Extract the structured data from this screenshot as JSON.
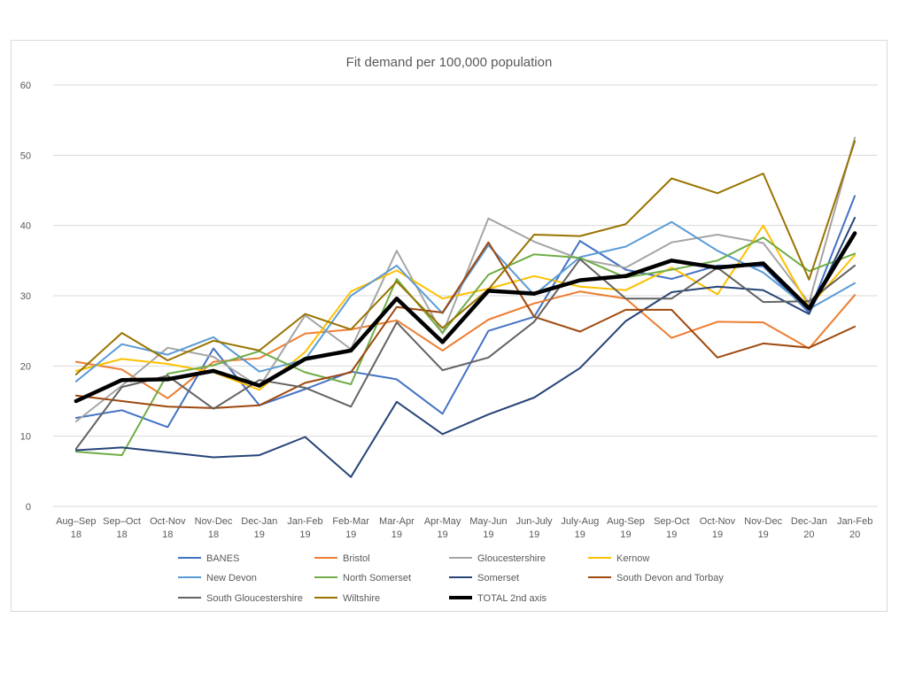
{
  "chart_data": {
    "type": "line",
    "title": "Fit demand per 100,000 population",
    "xlabel": "",
    "ylabel": "",
    "ylim": [
      0,
      60
    ],
    "yticks": [
      0,
      10,
      20,
      30,
      40,
      50,
      60
    ],
    "grid": true,
    "legend_position": "bottom",
    "categories": [
      [
        "Aug–Sep",
        "18"
      ],
      [
        "Sep–Oct",
        "18"
      ],
      [
        "Oct-Nov",
        "18"
      ],
      [
        "Nov-Dec",
        "18"
      ],
      [
        "Dec-Jan",
        "19"
      ],
      [
        "Jan-Feb",
        "19"
      ],
      [
        "Feb-Mar",
        "19"
      ],
      [
        "Mar-Apr",
        "19"
      ],
      [
        "Apr-May",
        "19"
      ],
      [
        "May-Jun",
        "19"
      ],
      [
        "Jun-July",
        "19"
      ],
      [
        "July-Aug",
        "19"
      ],
      [
        "Aug-Sep",
        "19"
      ],
      [
        "Sep-Oct",
        "19"
      ],
      [
        "Oct-Nov",
        "19"
      ],
      [
        "Nov-Dec",
        "19"
      ],
      [
        "Dec-Jan",
        "20"
      ],
      [
        "Jan-Feb",
        "20"
      ]
    ],
    "series": [
      {
        "name": "BANES",
        "color": "#4472C4",
        "width": 2,
        "values": [
          12.6,
          13.7,
          11.3,
          22.5,
          14.4,
          16.7,
          19.2,
          18.1,
          13.2,
          25.0,
          27.0,
          37.8,
          33.7,
          32.4,
          34.3,
          34.2,
          27.6,
          44.2
        ]
      },
      {
        "name": "Bristol",
        "color": "#ED7D31",
        "width": 2,
        "values": [
          20.6,
          19.5,
          15.4,
          20.6,
          21.1,
          24.6,
          25.2,
          26.5,
          22.2,
          26.6,
          28.9,
          30.6,
          29.6,
          24.0,
          26.3,
          26.2,
          22.5,
          30.1
        ]
      },
      {
        "name": "Gloucestershire",
        "color": "#A5A5A5",
        "width": 2,
        "values": [
          12.1,
          17.2,
          22.6,
          21.3,
          17.0,
          27.2,
          22.4,
          36.4,
          24.6,
          41.0,
          37.7,
          35.2,
          34.0,
          37.6,
          38.7,
          37.5,
          29.0,
          52.5
        ]
      },
      {
        "name": "Kernow",
        "color": "#FFC000",
        "width": 2,
        "values": [
          19.3,
          21.0,
          20.3,
          19.1,
          16.6,
          22.0,
          30.6,
          33.6,
          29.6,
          31.0,
          32.8,
          31.3,
          30.8,
          34.0,
          30.2,
          40.0,
          28.4,
          35.8
        ]
      },
      {
        "name": "New Devon",
        "color": "#5B9BD5",
        "width": 2,
        "values": [
          17.8,
          23.1,
          21.6,
          24.1,
          19.2,
          20.9,
          30.0,
          34.3,
          27.5,
          37.2,
          30.1,
          35.5,
          37.0,
          40.5,
          36.4,
          33.3,
          28.1,
          31.8
        ]
      },
      {
        "name": "North Somerset",
        "color": "#70AD47",
        "width": 2,
        "values": [
          7.8,
          7.3,
          18.9,
          20.1,
          22.1,
          19.1,
          17.4,
          32.4,
          24.7,
          33.0,
          35.9,
          35.4,
          32.6,
          33.7,
          35.0,
          38.3,
          33.5,
          36.0
        ]
      },
      {
        "name": "Somerset",
        "color": "#264478",
        "width": 2,
        "values": [
          8.0,
          8.4,
          7.7,
          7.0,
          7.3,
          9.9,
          4.2,
          14.9,
          10.3,
          13.1,
          15.5,
          19.7,
          26.4,
          30.5,
          31.3,
          30.8,
          27.4,
          41.1
        ]
      },
      {
        "name": "South Devon and Torbay",
        "color": "#9E480E",
        "width": 2,
        "values": [
          15.8,
          15.0,
          14.2,
          14.0,
          14.4,
          17.6,
          19.1,
          28.4,
          27.6,
          37.6,
          27.0,
          24.9,
          28.0,
          28.0,
          21.2,
          23.2,
          22.6,
          25.6
        ]
      },
      {
        "name": "South Gloucestershire",
        "color": "#636363",
        "width": 2,
        "values": [
          8.2,
          17.0,
          18.6,
          13.9,
          18.0,
          16.9,
          14.2,
          26.2,
          19.4,
          21.2,
          26.3,
          35.2,
          29.6,
          29.6,
          34.0,
          29.1,
          29.2,
          34.3
        ]
      },
      {
        "name": "Wiltshire",
        "color": "#997300",
        "width": 2,
        "values": [
          18.8,
          24.7,
          20.8,
          23.6,
          22.2,
          27.4,
          25.2,
          32.0,
          25.4,
          30.9,
          38.7,
          38.5,
          40.2,
          46.7,
          44.6,
          47.4,
          32.3,
          52.0
        ]
      },
      {
        "name": "TOTAL 2nd axis",
        "color": "#000000",
        "width": 4.5,
        "values": [
          15.0,
          18.0,
          18.1,
          19.3,
          17.2,
          21.0,
          22.2,
          29.6,
          23.4,
          30.7,
          30.3,
          32.2,
          32.8,
          35.0,
          34.0,
          34.6,
          28.2,
          38.9
        ]
      }
    ]
  }
}
